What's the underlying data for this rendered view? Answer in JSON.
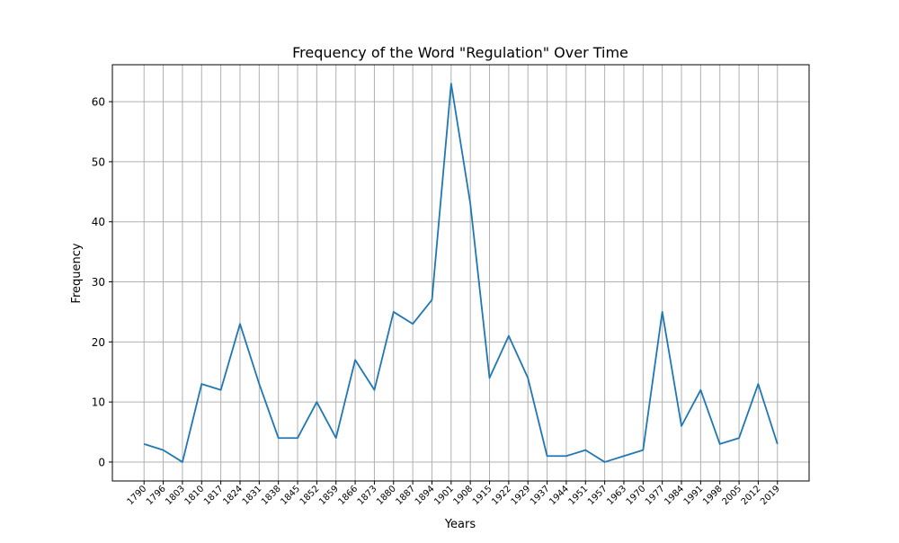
{
  "chart_data": {
    "type": "line",
    "title": "Frequency of the Word \"Regulation\" Over Time",
    "xlabel": "Years",
    "ylabel": "Frequency",
    "categories": [
      "1790",
      "1796",
      "1803",
      "1810",
      "1817",
      "1824",
      "1831",
      "1838",
      "1845",
      "1852",
      "1859",
      "1866",
      "1873",
      "1880",
      "1887",
      "1894",
      "1901",
      "1908",
      "1915",
      "1922",
      "1929",
      "1937",
      "1944",
      "1951",
      "1957",
      "1963",
      "1970",
      "1977",
      "1984",
      "1991",
      "1998",
      "2005",
      "2012",
      "2019"
    ],
    "series": [
      {
        "values": [
          3,
          2,
          0,
          13,
          12,
          23,
          13,
          4,
          4,
          10,
          4,
          17,
          12,
          25,
          23,
          27,
          63,
          43,
          14,
          21,
          14,
          1,
          1,
          2,
          0,
          1,
          2,
          25,
          6,
          12,
          3,
          4,
          13,
          3
        ],
        "color": "#1f77b4"
      }
    ],
    "ylim": [
      -3.15,
      66.15
    ],
    "yticks": [
      0,
      10,
      20,
      30,
      40,
      50,
      60
    ],
    "grid": true,
    "legend": "none"
  }
}
